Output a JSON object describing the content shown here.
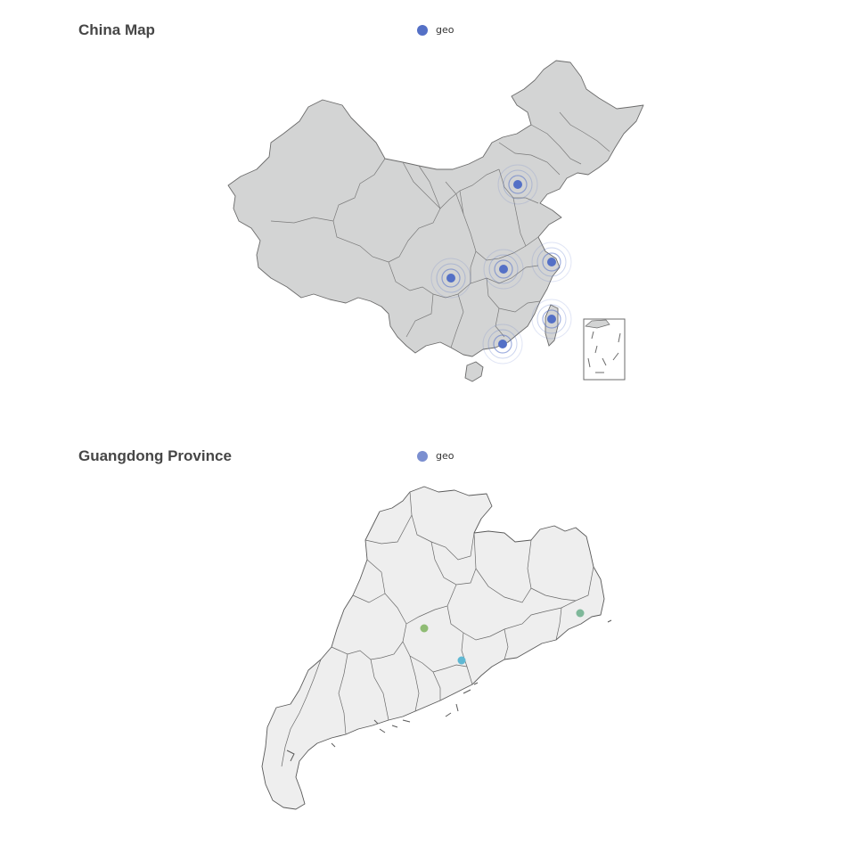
{
  "china_panel": {
    "title": "China Map",
    "legend": {
      "label": "geo",
      "color": "#5470c6"
    },
    "map_fill": "#d3d4d4",
    "map_stroke": "#6b6b6b",
    "point_color": "#5470c6",
    "points": [
      "beijing-point",
      "shanghai-point",
      "wuhan-point",
      "chengdu-point",
      "taipei-point",
      "guangzhou-point"
    ]
  },
  "guangdong_panel": {
    "title": "Guangdong Province",
    "legend": {
      "label": "geo",
      "color": "#7b8fd0"
    },
    "map_fill": "#eeeeee",
    "map_stroke": "#5a5a5a",
    "points": [
      {
        "name": "guangzhou-point",
        "color": "#8fbc74"
      },
      {
        "name": "shenzhen-point",
        "color": "#5fb8d3"
      },
      {
        "name": "shantou-point",
        "color": "#7fb89a"
      }
    ]
  }
}
